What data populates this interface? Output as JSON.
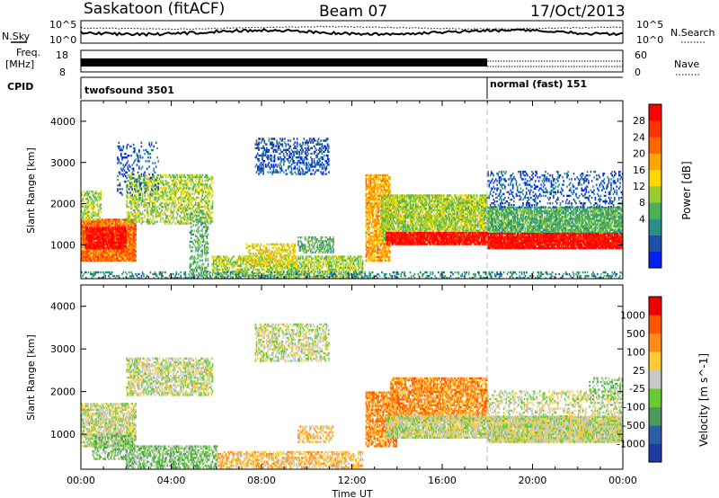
{
  "header": {
    "station": "Saskatoon (fitACF)",
    "beam": "Beam 07",
    "date": "17/Oct/2013"
  },
  "top_panels": {
    "nsky_label": "N.Sky",
    "nsearch_label": "N.Search",
    "noise_ticks_left": [
      "10^5",
      "10^0"
    ],
    "noise_ticks_right": [
      "10^5",
      "10^0"
    ],
    "freq_label": "Freq.",
    "freq_unit": "[MHz]",
    "freq_ticks": [
      "18",
      "8"
    ],
    "nave_label": "Nave",
    "nave_ticks": [
      "60",
      "0"
    ],
    "cpid_label": "CPID",
    "cpid_segments": [
      {
        "label": "twofsound 3501",
        "start_hour": 0,
        "end_hour": 18
      },
      {
        "label": "normal (fast) 151",
        "start_hour": 18,
        "end_hour": 24
      }
    ]
  },
  "chart_data": [
    {
      "type": "heatmap",
      "name": "power",
      "ylabel": "Slant Range [km]",
      "xlim": [
        0,
        24
      ],
      "ylim": [
        180,
        4500
      ],
      "yticks": [
        "1000",
        "2000",
        "3000",
        "4000"
      ],
      "colorbar": {
        "label": "Power [dB]",
        "ticks": [
          "28",
          "24",
          "20",
          "16",
          "12",
          "8",
          "4"
        ],
        "colors": [
          "#0022ee",
          "#1f4fa6",
          "#2a8f87",
          "#4cb05a",
          "#9acd32",
          "#ffd700",
          "#ffa500",
          "#ff6600",
          "#ff3300",
          "#ff0000"
        ]
      },
      "features": [
        {
          "t0": 0.0,
          "t1": 2.4,
          "r0": 600,
          "r1": 1600,
          "level": 7,
          "density": 0.9
        },
        {
          "t0": 0.2,
          "t1": 2.0,
          "r0": 900,
          "r1": 1400,
          "level": 9,
          "density": 0.8
        },
        {
          "t0": 0.0,
          "t1": 0.9,
          "r0": 1600,
          "r1": 2300,
          "level": 4,
          "density": 0.5
        },
        {
          "t0": 2.0,
          "t1": 5.8,
          "r0": 1500,
          "r1": 2700,
          "level": 4,
          "density": 0.5
        },
        {
          "t0": 1.6,
          "t1": 3.4,
          "r0": 2200,
          "r1": 3500,
          "level": 1,
          "density": 0.2
        },
        {
          "t0": 4.8,
          "t1": 5.6,
          "r0": 200,
          "r1": 1800,
          "level": 3,
          "density": 0.4
        },
        {
          "t0": 5.8,
          "t1": 12.5,
          "r0": 200,
          "r1": 700,
          "level": 4,
          "density": 0.6
        },
        {
          "t0": 7.3,
          "t1": 9.5,
          "r0": 500,
          "r1": 1000,
          "level": 5,
          "density": 0.5
        },
        {
          "t0": 7.7,
          "t1": 11.0,
          "r0": 2700,
          "r1": 3600,
          "level": 1,
          "density": 0.4
        },
        {
          "t0": 9.6,
          "t1": 11.2,
          "r0": 800,
          "r1": 1200,
          "level": 3,
          "density": 0.5
        },
        {
          "t0": 12.6,
          "t1": 13.7,
          "r0": 600,
          "r1": 2700,
          "level": 6,
          "density": 0.7
        },
        {
          "t0": 13.3,
          "t1": 18.0,
          "r0": 1100,
          "r1": 2200,
          "level": 4,
          "density": 0.8
        },
        {
          "t0": 13.5,
          "t1": 18.0,
          "r0": 1000,
          "r1": 1300,
          "level": 9,
          "density": 0.9
        },
        {
          "t0": 18.0,
          "t1": 24.0,
          "r0": 900,
          "r1": 1300,
          "level": 9,
          "density": 0.95
        },
        {
          "t0": 18.0,
          "t1": 24.0,
          "r0": 1300,
          "r1": 1900,
          "level": 3,
          "density": 0.8
        },
        {
          "t0": 18.0,
          "t1": 24.0,
          "r0": 1900,
          "r1": 2800,
          "level": 1,
          "density": 0.25
        },
        {
          "t0": 0.0,
          "t1": 24.0,
          "r0": 180,
          "r1": 350,
          "level": 2,
          "density": 0.3
        }
      ]
    },
    {
      "type": "heatmap",
      "name": "velocity",
      "xlabel": "Time UT",
      "ylabel": "Slant Range [km]",
      "xlim": [
        0,
        24
      ],
      "ylim": [
        180,
        4500
      ],
      "xticks": [
        "00:00",
        "04:00",
        "08:00",
        "12:00",
        "16:00",
        "20:00",
        "00:00"
      ],
      "yticks": [
        "1000",
        "2000",
        "3000",
        "4000"
      ],
      "colorbar": {
        "label": "Velocity [m s^-1]",
        "ticks": [
          "1000",
          "500",
          "100",
          "25",
          "-25",
          "-100",
          "-500",
          "-1000"
        ],
        "colors": [
          "#1e3ca0",
          "#2a5fa6",
          "#4b9a5a",
          "#66cc33",
          "#c8c8c8",
          "#ffcc33",
          "#ff8c1a",
          "#ff5500",
          "#ee0000"
        ]
      },
      "features": [
        {
          "t0": 0.0,
          "t1": 2.4,
          "r0": 700,
          "r1": 1700,
          "level": 4,
          "density": 0.7
        },
        {
          "t0": 0.5,
          "t1": 2.4,
          "r0": 400,
          "r1": 1000,
          "level": 3,
          "density": 0.5
        },
        {
          "t0": 2.0,
          "t1": 5.8,
          "r0": 1900,
          "r1": 2800,
          "level": 4,
          "density": 0.6
        },
        {
          "t0": 2.0,
          "t1": 6.0,
          "r0": 200,
          "r1": 700,
          "level": 3,
          "density": 0.6
        },
        {
          "t0": 6.0,
          "t1": 12.5,
          "r0": 200,
          "r1": 600,
          "level": 5,
          "density": 0.6
        },
        {
          "t0": 7.7,
          "t1": 11.0,
          "r0": 2700,
          "r1": 3600,
          "level": 4,
          "density": 0.5
        },
        {
          "t0": 9.6,
          "t1": 11.2,
          "r0": 800,
          "r1": 1200,
          "level": 5,
          "density": 0.5
        },
        {
          "t0": 12.6,
          "t1": 14.0,
          "r0": 700,
          "r1": 2000,
          "level": 6,
          "density": 0.7
        },
        {
          "t0": 13.7,
          "t1": 18.0,
          "r0": 1300,
          "r1": 2300,
          "level": 6,
          "density": 0.75
        },
        {
          "t0": 13.5,
          "t1": 18.0,
          "r0": 900,
          "r1": 1400,
          "level": 4,
          "density": 0.85
        },
        {
          "t0": 18.0,
          "t1": 24.0,
          "r0": 800,
          "r1": 1400,
          "level": 4,
          "density": 0.95
        },
        {
          "t0": 18.0,
          "t1": 24.0,
          "r0": 1400,
          "r1": 2000,
          "level": 4,
          "density": 0.35
        },
        {
          "t0": 22.5,
          "t1": 24.0,
          "r0": 1800,
          "r1": 2300,
          "level": 3,
          "density": 0.3
        }
      ]
    }
  ]
}
